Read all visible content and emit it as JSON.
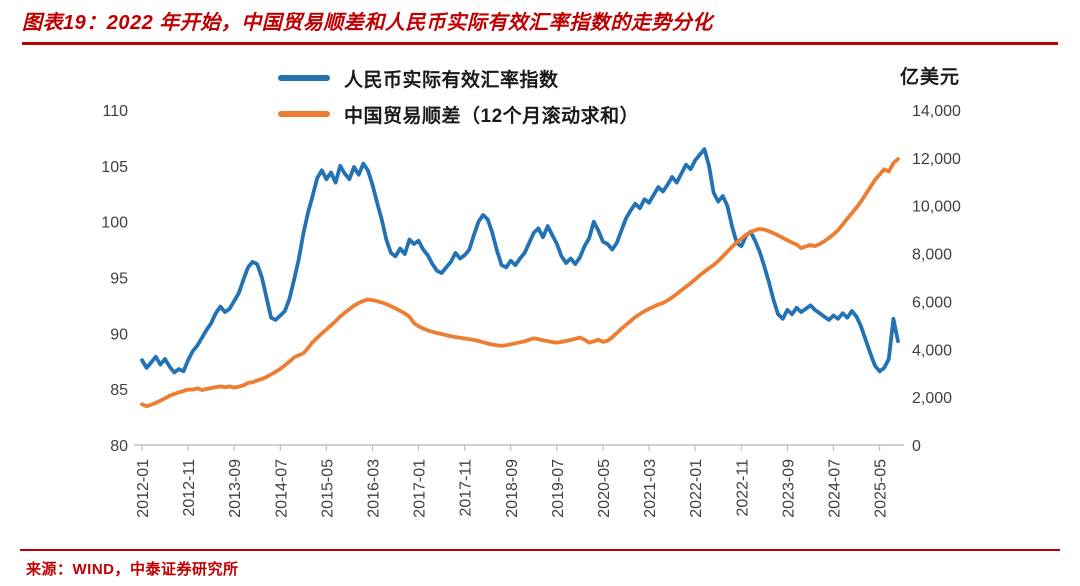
{
  "title": "图表19：2022 年开始，中国贸易顺差和人民币实际有效汇率指数的走势分化",
  "source": "来源：WIND，中泰证券研究所",
  "unit_label": "亿美元",
  "colors": {
    "accent_red": "#C00000",
    "reer_blue": "#2272B4",
    "surplus_orange": "#ED7D31",
    "axis_gray": "#BFBFBF",
    "tick_text": "#3F3F3F"
  },
  "chart_data": {
    "type": "line",
    "title": "图表19：2022 年开始，中国贸易顺差和人民币实际有效汇率指数的走势分化",
    "x_freq": "monthly",
    "x_start": "2012-01",
    "x_end": "2025-09",
    "x_tick_labels": [
      "2012-01",
      "2012-11",
      "2013-09",
      "2014-07",
      "2015-05",
      "2016-03",
      "2017-01",
      "2017-11",
      "2018-09",
      "2019-07",
      "2020-05",
      "2021-03",
      "2022-01",
      "2022-11",
      "2023-09",
      "2024-07",
      "2025-05"
    ],
    "x_tick_indices": [
      0,
      10,
      20,
      30,
      40,
      50,
      60,
      70,
      80,
      90,
      100,
      110,
      120,
      130,
      140,
      150,
      160
    ],
    "left_axis": {
      "min": 80,
      "max": 110,
      "ticks": [
        80,
        85,
        90,
        95,
        100,
        105,
        110
      ]
    },
    "right_axis": {
      "min": 0,
      "max": 14000,
      "ticks": [
        0,
        2000,
        4000,
        6000,
        8000,
        10000,
        12000,
        14000
      ],
      "label": "亿美元"
    },
    "grid": false,
    "legend_position": "top-center",
    "series": [
      {
        "name": "人民币实际有效汇率指数",
        "axis": "left",
        "color": "#2272B4",
        "values": [
          87.6,
          86.9,
          87.4,
          87.9,
          87.2,
          87.7,
          87.0,
          86.5,
          86.8,
          86.6,
          87.6,
          88.4,
          88.9,
          89.6,
          90.3,
          90.9,
          91.8,
          92.4,
          91.9,
          92.2,
          92.9,
          93.6,
          94.8,
          95.9,
          96.4,
          96.2,
          95.0,
          93.2,
          91.4,
          91.2,
          91.6,
          92.0,
          93.1,
          94.8,
          96.6,
          98.9,
          100.8,
          102.3,
          103.9,
          104.6,
          103.8,
          104.4,
          103.5,
          105.0,
          104.3,
          103.8,
          104.9,
          104.2,
          105.2,
          104.6,
          103.3,
          101.7,
          100.2,
          98.4,
          97.2,
          96.9,
          97.6,
          97.1,
          98.4,
          98.0,
          98.3,
          97.5,
          97.0,
          96.2,
          95.6,
          95.4,
          95.9,
          96.4,
          97.2,
          96.7,
          97.0,
          97.5,
          98.8,
          100.0,
          100.6,
          100.2,
          99.0,
          97.4,
          96.1,
          95.9,
          96.5,
          96.1,
          96.7,
          97.2,
          98.1,
          99.0,
          99.4,
          98.6,
          99.6,
          98.8,
          98.0,
          96.9,
          96.3,
          96.7,
          96.2,
          96.8,
          97.8,
          98.5,
          100.0,
          99.2,
          98.2,
          98.0,
          97.5,
          98.1,
          99.2,
          100.3,
          101.0,
          101.6,
          101.2,
          102.0,
          101.7,
          102.4,
          103.1,
          102.7,
          103.3,
          104.0,
          103.5,
          104.3,
          105.1,
          104.7,
          105.5,
          106.0,
          106.5,
          105.0,
          102.6,
          101.8,
          102.3,
          101.4,
          99.6,
          98.1,
          97.8,
          98.7,
          99.1,
          98.3,
          97.3,
          96.0,
          94.6,
          93.0,
          91.7,
          91.3,
          92.1,
          91.7,
          92.3,
          91.9,
          92.2,
          92.5,
          92.1,
          91.8,
          91.5,
          91.2,
          91.6,
          91.3,
          91.8,
          91.4,
          92.0,
          91.5,
          90.6,
          89.4,
          88.2,
          87.1,
          86.6,
          86.9,
          87.7,
          91.3,
          89.3
        ]
      },
      {
        "name": "中国贸易顺差（12个月滚动求和）",
        "axis": "right",
        "color": "#ED7D31",
        "values": [
          1700,
          1620,
          1680,
          1760,
          1850,
          1950,
          2060,
          2130,
          2200,
          2260,
          2320,
          2310,
          2370,
          2300,
          2340,
          2380,
          2420,
          2450,
          2410,
          2450,
          2400,
          2440,
          2490,
          2590,
          2620,
          2700,
          2760,
          2840,
          2950,
          3060,
          3180,
          3330,
          3490,
          3660,
          3750,
          3830,
          4050,
          4300,
          4480,
          4660,
          4830,
          5000,
          5180,
          5370,
          5530,
          5680,
          5820,
          5940,
          6020,
          6080,
          6050,
          6010,
          5960,
          5890,
          5800,
          5710,
          5610,
          5500,
          5360,
          5100,
          4960,
          4870,
          4790,
          4730,
          4680,
          4640,
          4590,
          4550,
          4510,
          4480,
          4450,
          4420,
          4390,
          4350,
          4290,
          4240,
          4200,
          4170,
          4140,
          4170,
          4210,
          4250,
          4290,
          4330,
          4400,
          4460,
          4420,
          4380,
          4340,
          4300,
          4280,
          4310,
          4350,
          4390,
          4440,
          4490,
          4400,
          4280,
          4330,
          4400,
          4310,
          4360,
          4500,
          4680,
          4860,
          5020,
          5180,
          5350,
          5470,
          5590,
          5690,
          5780,
          5870,
          5940,
          6040,
          6170,
          6310,
          6460,
          6610,
          6760,
          6920,
          7090,
          7240,
          7390,
          7520,
          7690,
          7880,
          8080,
          8280,
          8470,
          8620,
          8780,
          8890,
          8980,
          9030,
          9000,
          8940,
          8850,
          8760,
          8660,
          8560,
          8460,
          8380,
          8230,
          8300,
          8360,
          8310,
          8400,
          8510,
          8650,
          8800,
          8980,
          9220,
          9460,
          9690,
          9920,
          10180,
          10480,
          10780,
          11080,
          11300,
          11520,
          11430,
          11780,
          11950
        ]
      }
    ]
  }
}
